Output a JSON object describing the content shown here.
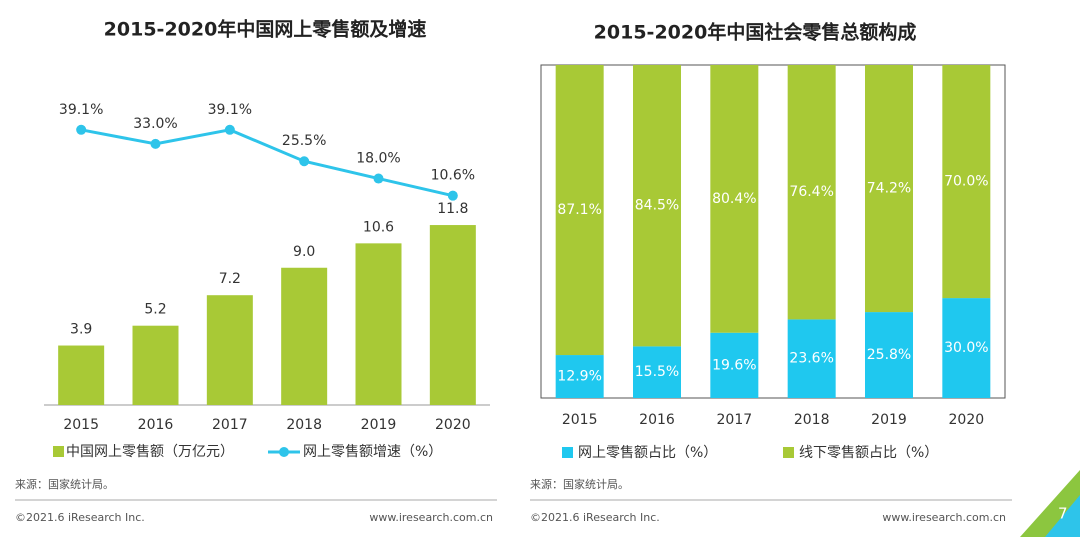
{
  "chart_data": [
    {
      "type": "combo",
      "title": "2015-2020年中国网上零售额及增速",
      "categories": [
        "2015",
        "2016",
        "2017",
        "2018",
        "2019",
        "2020"
      ],
      "series": [
        {
          "name": "中国网上零售额（万亿元）",
          "kind": "bar",
          "color": "#a8c936",
          "values": [
            3.9,
            5.2,
            7.2,
            9.0,
            10.6,
            11.8
          ],
          "value_labels": [
            "3.9",
            "5.2",
            "7.2",
            "9.0",
            "10.6",
            "11.8"
          ]
        },
        {
          "name": "网上零售额增速（%）",
          "kind": "line",
          "axis": "y2",
          "color": "#2ec4ea",
          "values": [
            39.1,
            33.0,
            39.1,
            25.5,
            18.0,
            10.6
          ],
          "value_labels": [
            "39.1%",
            "33.0%",
            "39.1%",
            "25.5%",
            "18.0%",
            "10.6%"
          ]
        }
      ],
      "ylim": [
        0,
        20
      ],
      "y2lim": [
        -80,
        52
      ],
      "legend": "bottom"
    },
    {
      "type": "bar",
      "title": "2015-2020年中国社会零售总额构成",
      "stacked": true,
      "categories": [
        "2015",
        "2016",
        "2017",
        "2018",
        "2019",
        "2020"
      ],
      "series": [
        {
          "name": "网上零售额占比（%）",
          "color": "#1fc8ef",
          "values": [
            12.9,
            15.5,
            19.6,
            23.6,
            25.8,
            30.0
          ],
          "value_labels": [
            "12.9%",
            "15.5%",
            "19.6%",
            "23.6%",
            "25.8%",
            "30.0%"
          ]
        },
        {
          "name": "线下零售额占比（%）",
          "color": "#a8c936",
          "values": [
            87.1,
            84.5,
            80.4,
            76.4,
            74.2,
            70.0
          ],
          "value_labels": [
            "87.1%",
            "84.5%",
            "80.4%",
            "76.4%",
            "74.2%",
            "70.0%"
          ]
        }
      ],
      "ylim": [
        0,
        100
      ],
      "legend": "bottom"
    }
  ],
  "footer": [
    {
      "source": "来源：国家统计局。",
      "copyright": "©2021.6 iResearch Inc.",
      "website": "www.iresearch.com.cn"
    },
    {
      "source": "来源：国家统计局。",
      "copyright": "©2021.6 iResearch Inc.",
      "website": "www.iresearch.com.cn"
    }
  ],
  "page_number": "7"
}
